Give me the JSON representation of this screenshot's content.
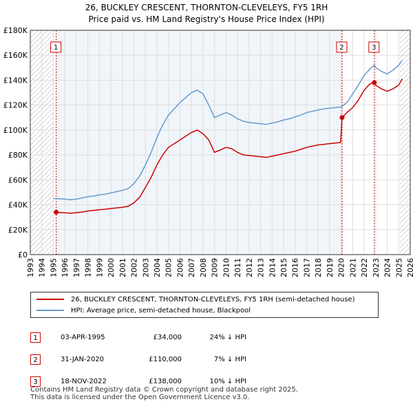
{
  "title_line1": "26, BUCKLEY CRESCENT, THORNTON-CLEVELEYS, FY5 1RH",
  "title_line2": "Price paid vs. HM Land Registry's House Price Index (HPI)",
  "colors": {
    "property": "#cc0000",
    "hpi": "#6699cc",
    "marker_border": "#cc0000",
    "band": "#dde8f5",
    "grid": "#dddddd"
  },
  "legend": {
    "property_label": "26, BUCKLEY CRESCENT, THORNTON-CLEVELEYS, FY5 1RH (semi-detached house)",
    "hpi_label": "HPI: Average price, semi-detached house, Blackpool"
  },
  "sales": [
    {
      "num": "1",
      "date": "03-APR-1995",
      "price": "£34,000",
      "hpi": "24% ↓ HPI"
    },
    {
      "num": "2",
      "date": "31-JAN-2020",
      "price": "£110,000",
      "hpi": "7% ↓ HPI"
    },
    {
      "num": "3",
      "date": "18-NOV-2022",
      "price": "£138,000",
      "hpi": "10% ↓ HPI"
    }
  ],
  "footer": {
    "line1": "Contains HM Land Registry data © Crown copyright and database right 2025.",
    "line2": "This data is licensed under the Open Government Licence v3.0."
  },
  "chart_data": {
    "type": "line",
    "xlim": [
      1993,
      2026
    ],
    "ylim": [
      0,
      180000
    ],
    "x_ticks": [
      1993,
      1994,
      1995,
      1996,
      1997,
      1998,
      1999,
      2000,
      2001,
      2002,
      2003,
      2004,
      2005,
      2006,
      2007,
      2008,
      2009,
      2010,
      2011,
      2012,
      2013,
      2014,
      2015,
      2016,
      2017,
      2018,
      2019,
      2020,
      2021,
      2022,
      2023,
      2024,
      2025,
      2026
    ],
    "y_ticks": [
      {
        "value": 0,
        "label": "£0"
      },
      {
        "value": 20000,
        "label": "£20K"
      },
      {
        "value": 40000,
        "label": "£40K"
      },
      {
        "value": 60000,
        "label": "£60K"
      },
      {
        "value": 80000,
        "label": "£80K"
      },
      {
        "value": 100000,
        "label": "£100K"
      },
      {
        "value": 120000,
        "label": "£120K"
      },
      {
        "value": 140000,
        "label": "£140K"
      },
      {
        "value": 160000,
        "label": "£160K"
      },
      {
        "value": 180000,
        "label": "£180K"
      }
    ],
    "hatched_ranges": [
      [
        1993,
        1995.0
      ],
      [
        2025.1,
        2026
      ]
    ],
    "series": [
      {
        "name": "26, BUCKLEY CRESCENT, THORNTON-CLEVELEYS, FY5 1RH (semi-detached house)",
        "points": [
          [
            1995.25,
            34000
          ],
          [
            1995.5,
            33800
          ],
          [
            1996,
            33500
          ],
          [
            1996.5,
            33200
          ],
          [
            1997,
            33700
          ],
          [
            1997.5,
            34200
          ],
          [
            1998,
            35000
          ],
          [
            1998.5,
            35500
          ],
          [
            1999,
            36000
          ],
          [
            1999.5,
            36400
          ],
          [
            2000,
            37000
          ],
          [
            2000.5,
            37500
          ],
          [
            2001,
            38000
          ],
          [
            2001.5,
            38800
          ],
          [
            2002,
            41500
          ],
          [
            2002.5,
            46000
          ],
          [
            2003,
            54000
          ],
          [
            2003.5,
            62000
          ],
          [
            2004,
            72000
          ],
          [
            2004.5,
            80000
          ],
          [
            2005,
            86000
          ],
          [
            2005.5,
            89000
          ],
          [
            2006,
            92000
          ],
          [
            2006.5,
            95000
          ],
          [
            2007,
            98000
          ],
          [
            2007.5,
            100000
          ],
          [
            2008,
            97000
          ],
          [
            2008.5,
            92000
          ],
          [
            2009,
            82000
          ],
          [
            2009.5,
            84000
          ],
          [
            2010,
            86000
          ],
          [
            2010.5,
            85000
          ],
          [
            2011,
            82000
          ],
          [
            2011.5,
            80000
          ],
          [
            2012,
            79500
          ],
          [
            2012.5,
            79000
          ],
          [
            2013,
            78500
          ],
          [
            2013.5,
            78000
          ],
          [
            2014,
            79000
          ],
          [
            2014.5,
            80000
          ],
          [
            2015,
            81000
          ],
          [
            2015.5,
            82000
          ],
          [
            2016,
            83000
          ],
          [
            2016.5,
            84500
          ],
          [
            2017,
            86000
          ],
          [
            2017.5,
            87000
          ],
          [
            2018,
            88000
          ],
          [
            2018.5,
            88500
          ],
          [
            2019,
            89000
          ],
          [
            2019.5,
            89500
          ],
          [
            2019.95,
            90000
          ],
          [
            2020.08,
            110000
          ],
          [
            2020.5,
            114000
          ],
          [
            2021,
            118000
          ],
          [
            2021.5,
            124000
          ],
          [
            2022,
            132000
          ],
          [
            2022.5,
            137000
          ],
          [
            2022.88,
            138000
          ],
          [
            2023,
            136000
          ],
          [
            2023.5,
            133000
          ],
          [
            2024,
            131000
          ],
          [
            2024.5,
            133000
          ],
          [
            2025,
            136000
          ],
          [
            2025.3,
            141000
          ]
        ]
      },
      {
        "name": "HPI: Average price, semi-detached house, Blackpool",
        "points": [
          [
            1995,
            45000
          ],
          [
            1995.5,
            44800
          ],
          [
            1996,
            44500
          ],
          [
            1996.5,
            44000
          ],
          [
            1997,
            44500
          ],
          [
            1997.5,
            45500
          ],
          [
            1998,
            46500
          ],
          [
            1998.5,
            47000
          ],
          [
            1999,
            48000
          ],
          [
            1999.5,
            48500
          ],
          [
            2000,
            49500
          ],
          [
            2000.5,
            50500
          ],
          [
            2001,
            51500
          ],
          [
            2001.5,
            53000
          ],
          [
            2002,
            57000
          ],
          [
            2002.5,
            63000
          ],
          [
            2003,
            72000
          ],
          [
            2003.5,
            82000
          ],
          [
            2004,
            94000
          ],
          [
            2004.5,
            104000
          ],
          [
            2005,
            112000
          ],
          [
            2005.5,
            117000
          ],
          [
            2006,
            122000
          ],
          [
            2006.5,
            126000
          ],
          [
            2007,
            130000
          ],
          [
            2007.5,
            132000
          ],
          [
            2008,
            129000
          ],
          [
            2008.5,
            120000
          ],
          [
            2009,
            110000
          ],
          [
            2009.5,
            112000
          ],
          [
            2010,
            114000
          ],
          [
            2010.5,
            112000
          ],
          [
            2011,
            109000
          ],
          [
            2011.5,
            107000
          ],
          [
            2012,
            106000
          ],
          [
            2012.5,
            105500
          ],
          [
            2013,
            105000
          ],
          [
            2013.5,
            104500
          ],
          [
            2014,
            105500
          ],
          [
            2014.5,
            106500
          ],
          [
            2015,
            108000
          ],
          [
            2015.5,
            109000
          ],
          [
            2016,
            110500
          ],
          [
            2016.5,
            112000
          ],
          [
            2017,
            114000
          ],
          [
            2017.5,
            115000
          ],
          [
            2018,
            116000
          ],
          [
            2018.5,
            117000
          ],
          [
            2019,
            117500
          ],
          [
            2019.5,
            118000
          ],
          [
            2020,
            118500
          ],
          [
            2020.5,
            122000
          ],
          [
            2021,
            129000
          ],
          [
            2021.5,
            136000
          ],
          [
            2022,
            144000
          ],
          [
            2022.5,
            149000
          ],
          [
            2022.88,
            152000
          ],
          [
            2023,
            150000
          ],
          [
            2023.5,
            147000
          ],
          [
            2024,
            145000
          ],
          [
            2024.5,
            148000
          ],
          [
            2025,
            152000
          ],
          [
            2025.3,
            156000
          ]
        ]
      }
    ],
    "sale_markers": [
      {
        "label": "1",
        "x": 1995.25,
        "y": 34000
      },
      {
        "label": "2",
        "x": 2020.08,
        "y": 110000
      },
      {
        "label": "3",
        "x": 2022.88,
        "y": 138000
      }
    ]
  }
}
